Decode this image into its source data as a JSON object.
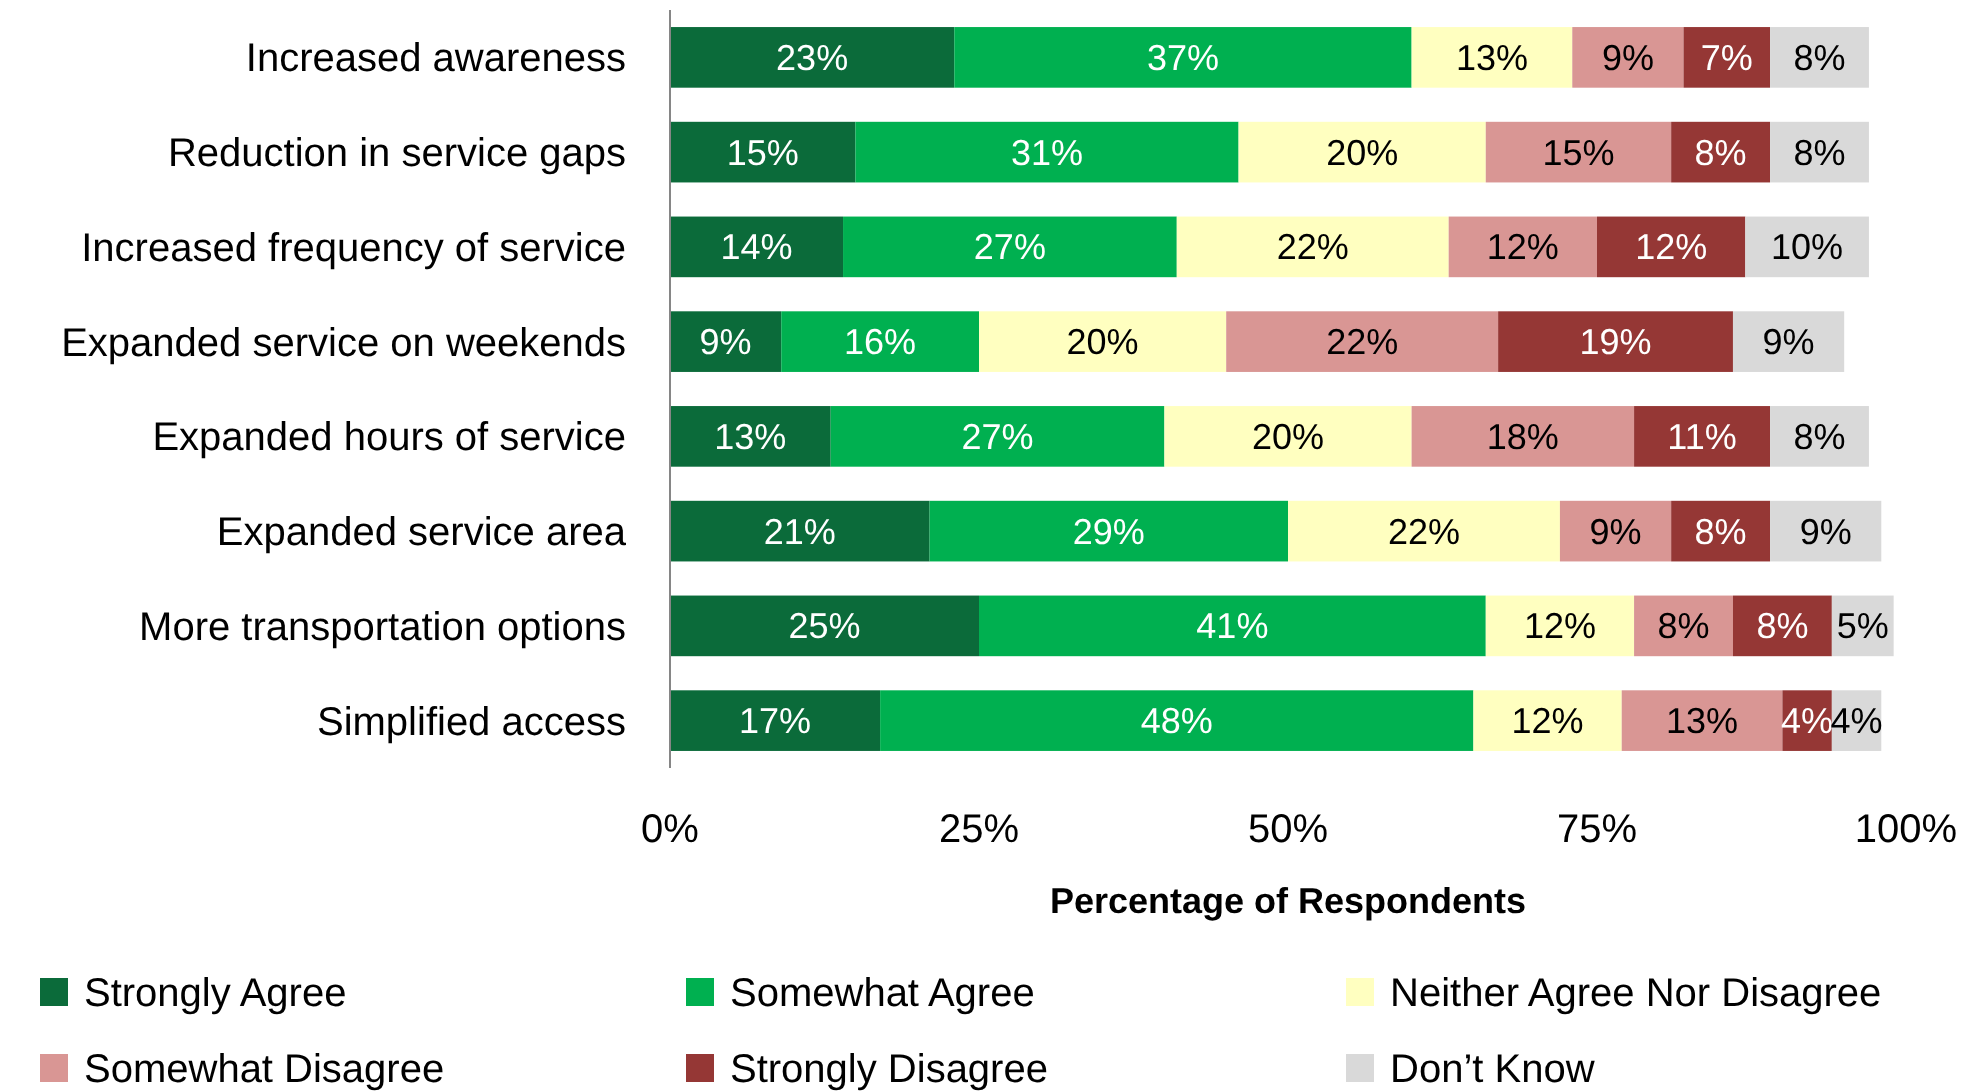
{
  "chart_data": {
    "type": "bar",
    "orientation": "horizontal",
    "stacked": true,
    "legend": "bottom",
    "grid": false,
    "xlabel": "Percentage of Respondents",
    "categories": [
      "Increased awareness",
      "Reduction in service gaps",
      "Increased frequency of service",
      "Expanded service on weekends",
      "Expanded hours of service",
      "Expanded service area",
      "More transportation options",
      "Simplified access"
    ],
    "xlim": [
      0,
      100
    ],
    "xticks": [
      {
        "value": 0,
        "label": "0%"
      },
      {
        "value": 25,
        "label": "25%"
      },
      {
        "value": 50,
        "label": "50%"
      },
      {
        "value": 75,
        "label": "75%"
      },
      {
        "value": 100,
        "label": "100%"
      }
    ],
    "series": [
      {
        "name": "Strongly Agree",
        "color": "#0b6b3a",
        "values": [
          23,
          15,
          14,
          9,
          13,
          21,
          25,
          17
        ],
        "value_labels": [
          "23%",
          "15%",
          "14%",
          "9%",
          "13%",
          "21%",
          "25%",
          "17%"
        ]
      },
      {
        "name": "Somewhat Agree",
        "color": "#00b050",
        "values": [
          37,
          31,
          27,
          16,
          27,
          29,
          41,
          48
        ],
        "value_labels": [
          "37%",
          "31%",
          "27%",
          "16%",
          "27%",
          "29%",
          "41%",
          "48%"
        ]
      },
      {
        "name": "Neither Agree Nor Disagree",
        "color": "#ffffc0",
        "values": [
          13,
          20,
          22,
          20,
          20,
          22,
          12,
          12
        ],
        "value_labels": [
          "13%",
          "20%",
          "22%",
          "20%",
          "20%",
          "22%",
          "12%",
          "12%"
        ]
      },
      {
        "name": "Somewhat Disagree",
        "color": "#d99694",
        "values": [
          9,
          15,
          12,
          22,
          18,
          9,
          8,
          13
        ],
        "value_labels": [
          "9%",
          "15%",
          "12%",
          "22%",
          "18%",
          "9%",
          "8%",
          "13%"
        ]
      },
      {
        "name": "Strongly Disagree",
        "color": "#953735",
        "values": [
          7,
          8,
          12,
          19,
          11,
          8,
          8,
          4
        ],
        "value_labels": [
          "7%",
          "8%",
          "12%",
          "19%",
          "11%",
          "8%",
          "8%",
          "4%"
        ]
      },
      {
        "name": "Don’t Know",
        "color": "#d9d9d9",
        "values": [
          8,
          8,
          10,
          9,
          8,
          9,
          5,
          4
        ],
        "value_labels": [
          "8%",
          "8%",
          "10%",
          "9%",
          "8%",
          "9%",
          "5%",
          "4%"
        ]
      }
    ]
  }
}
